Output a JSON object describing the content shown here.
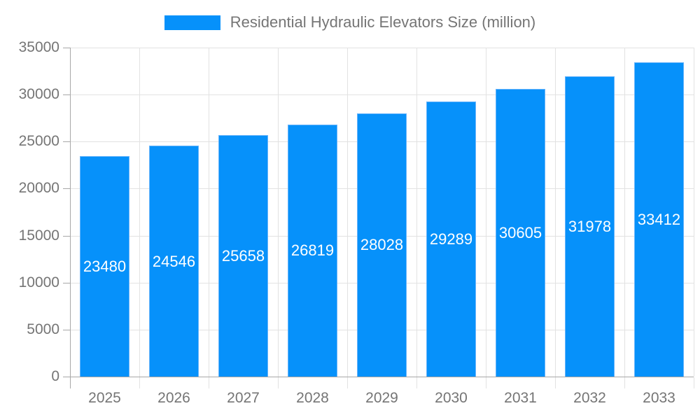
{
  "chart_data": {
    "type": "bar",
    "title": "Residential Hydraulic Elevators Size (million)",
    "legend": {
      "position": "top",
      "label": "Residential Hydraulic Elevators Size (million)"
    },
    "categories": [
      "2025",
      "2026",
      "2027",
      "2028",
      "2029",
      "2030",
      "2031",
      "2032",
      "2033"
    ],
    "series": [
      {
        "name": "Residential Hydraulic Elevators Size (million)",
        "values": [
          23480,
          24546,
          25658,
          26819,
          28028,
          29289,
          30605,
          31978,
          33412
        ]
      }
    ],
    "value_labels": [
      "23480",
      "24546",
      "25658",
      "26819",
      "28028",
      "29289",
      "30605",
      "31978",
      "33412"
    ],
    "xlabel": "",
    "ylabel": "",
    "ylim": [
      0,
      35000
    ],
    "y_ticks": [
      0,
      5000,
      10000,
      15000,
      20000,
      25000,
      30000,
      35000
    ],
    "grid": true,
    "colors": {
      "bar": "#0691fa",
      "bar_border": "#6ab5fb",
      "value_label": "#ffffff",
      "axis_text": "#757575",
      "grid_line": "#e2e2e2",
      "axis_line": "#a8a8a8"
    }
  }
}
